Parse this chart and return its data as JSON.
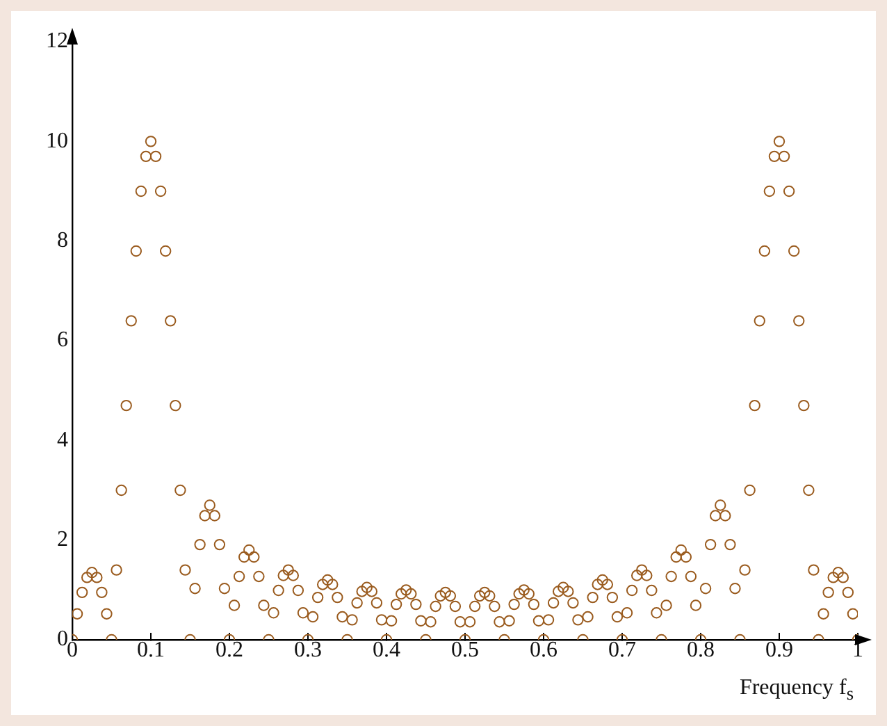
{
  "chart_data": {
    "type": "scatter",
    "xlabel": "Frequency f$_{s}$",
    "marker": "circle",
    "grid": false,
    "legend": false,
    "xlim": [
      0,
      1
    ],
    "xticks": [
      0,
      0.1,
      0.2,
      0.3,
      0.4,
      0.5,
      0.6,
      0.7,
      0.8,
      0.9,
      1
    ],
    "ylim": [
      0,
      12
    ],
    "yticks": [
      0,
      2,
      4,
      6,
      8,
      10,
      12
    ],
    "series": [
      {
        "color": "#9a5b1e",
        "x": [
          0,
          0.00625,
          0.0125,
          0.01875,
          0.025,
          0.03125,
          0.0375,
          0.04375,
          0.05,
          0.05625,
          0.0625,
          0.06875,
          0.075,
          0.08125,
          0.0875,
          0.09375,
          0.1,
          0.10625,
          0.1125,
          0.11875,
          0.125,
          0.13125,
          0.1375,
          0.14375,
          0.15,
          0.15625,
          0.1625,
          0.16875,
          0.175,
          0.18125,
          0.1875,
          0.19375,
          0.2,
          0.20625,
          0.2125,
          0.21875,
          0.225,
          0.23125,
          0.2375,
          0.24375,
          0.25,
          0.25625,
          0.2625,
          0.26875,
          0.275,
          0.28125,
          0.2875,
          0.29375,
          0.3,
          0.30625,
          0.3125,
          0.31875,
          0.325,
          0.33125,
          0.3375,
          0.34375,
          0.35,
          0.35625,
          0.3625,
          0.36875,
          0.375,
          0.38125,
          0.3875,
          0.39375,
          0.4,
          0.40625,
          0.4125,
          0.41875,
          0.425,
          0.43125,
          0.4375,
          0.44375,
          0.45,
          0.45625,
          0.4625,
          0.46875,
          0.475,
          0.48125,
          0.4875,
          0.49375,
          0.5,
          0.50625,
          0.5125,
          0.51875,
          0.525,
          0.53125,
          0.5375,
          0.54375,
          0.55,
          0.55625,
          0.5625,
          0.56875,
          0.575,
          0.58125,
          0.5875,
          0.59375,
          0.6,
          0.60625,
          0.6125,
          0.61875,
          0.625,
          0.63125,
          0.6375,
          0.64375,
          0.65,
          0.65625,
          0.6625,
          0.66875,
          0.675,
          0.68125,
          0.6875,
          0.69375,
          0.7,
          0.70625,
          0.7125,
          0.71875,
          0.725,
          0.73125,
          0.7375,
          0.74375,
          0.75,
          0.75625,
          0.7625,
          0.76875,
          0.775,
          0.78125,
          0.7875,
          0.79375,
          0.8,
          0.80625,
          0.8125,
          0.81875,
          0.825,
          0.83125,
          0.8375,
          0.84375,
          0.85,
          0.85625,
          0.8625,
          0.86875,
          0.875,
          0.88125,
          0.8875,
          0.89375,
          0.9,
          0.90625,
          0.9125,
          0.91875,
          0.925,
          0.93125,
          0.9375,
          0.94375,
          0.95,
          0.95625,
          0.9625,
          0.96875,
          0.975,
          0.98125,
          0.9875,
          0.99375,
          1
        ],
        "values": [
          0,
          0.52,
          0.95,
          1.25,
          1.35,
          1.25,
          0.95,
          0.52,
          0,
          1.4,
          3.0,
          4.7,
          6.4,
          7.8,
          9.0,
          9.7,
          10.0,
          9.7,
          9.0,
          7.8,
          6.4,
          4.7,
          3.0,
          1.4,
          0,
          1.03,
          1.91,
          2.49,
          2.7,
          2.49,
          1.91,
          1.03,
          0,
          0.69,
          1.27,
          1.66,
          1.8,
          1.66,
          1.27,
          0.69,
          0,
          0.54,
          0.99,
          1.29,
          1.4,
          1.29,
          0.99,
          0.54,
          0,
          0.46,
          0.85,
          1.11,
          1.2,
          1.11,
          0.85,
          0.46,
          0,
          0.4,
          0.74,
          0.97,
          1.05,
          0.97,
          0.74,
          0.4,
          0,
          0.38,
          0.71,
          0.92,
          1.0,
          0.92,
          0.71,
          0.38,
          0,
          0.36,
          0.67,
          0.88,
          0.95,
          0.88,
          0.67,
          0.36,
          0,
          0.36,
          0.67,
          0.88,
          0.95,
          0.88,
          0.67,
          0.36,
          0,
          0.38,
          0.71,
          0.92,
          1.0,
          0.92,
          0.71,
          0.38,
          0,
          0.4,
          0.74,
          0.97,
          1.05,
          0.97,
          0.74,
          0.4,
          0,
          0.46,
          0.85,
          1.11,
          1.2,
          1.11,
          0.85,
          0.46,
          0,
          0.54,
          0.99,
          1.29,
          1.4,
          1.29,
          0.99,
          0.54,
          0,
          0.69,
          1.27,
          1.66,
          1.8,
          1.66,
          1.27,
          0.69,
          0,
          1.03,
          1.91,
          2.49,
          2.7,
          2.49,
          1.91,
          1.03,
          0,
          1.4,
          3.0,
          4.7,
          6.4,
          7.8,
          9.0,
          9.7,
          10.0,
          9.7,
          9.0,
          7.8,
          6.4,
          4.7,
          3.0,
          1.4,
          0,
          0.52,
          0.95,
          1.25,
          1.35,
          1.25,
          0.95,
          0.52,
          0
        ]
      }
    ]
  }
}
